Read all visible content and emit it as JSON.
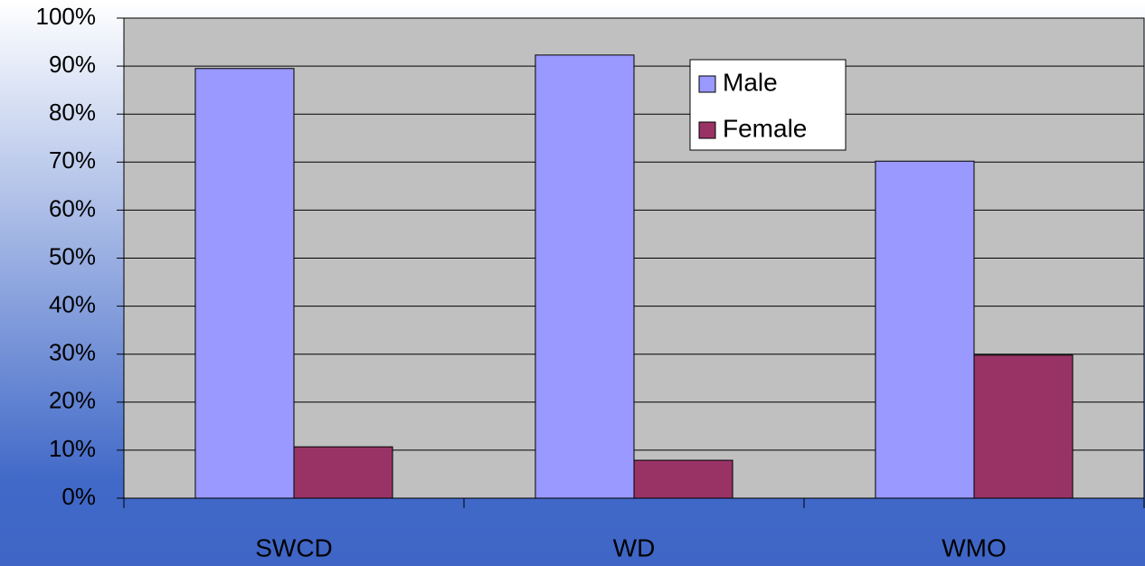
{
  "chart_data": {
    "type": "bar",
    "categories": [
      "SWCD",
      "WD",
      "WMO"
    ],
    "series": [
      {
        "name": "Male",
        "color": "#9999ff",
        "values": [
          89.5,
          92.3,
          70.2
        ]
      },
      {
        "name": "Female",
        "color": "#993366",
        "values": [
          10.7,
          7.9,
          29.8
        ]
      }
    ],
    "ylim": [
      0,
      100
    ],
    "yticks": [
      {
        "value": 0,
        "label": "0%"
      },
      {
        "value": 10,
        "label": "10%"
      },
      {
        "value": 20,
        "label": "20%"
      },
      {
        "value": 30,
        "label": "30%"
      },
      {
        "value": 40,
        "label": "40%"
      },
      {
        "value": 50,
        "label": "50%"
      },
      {
        "value": 60,
        "label": "60%"
      },
      {
        "value": 70,
        "label": "70%"
      },
      {
        "value": 80,
        "label": "80%"
      },
      {
        "value": 90,
        "label": "90%"
      },
      {
        "value": 100,
        "label": "100%"
      }
    ],
    "grid": true,
    "legend": "top-right"
  }
}
